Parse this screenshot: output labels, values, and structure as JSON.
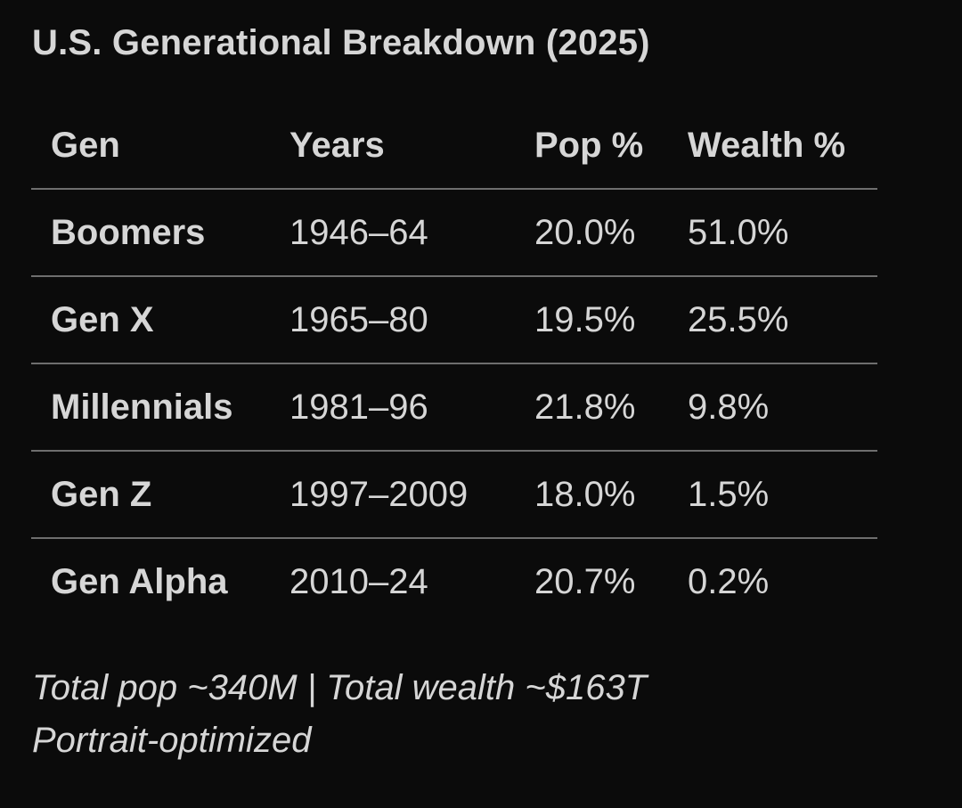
{
  "title": "U.S. Generational Breakdown (2025)",
  "colors": {
    "background": "#0b0b0b",
    "text": "#d6d6d6",
    "divider": "#6e6e6e"
  },
  "chart_data": {
    "type": "table",
    "title": "U.S. Generational Breakdown (2025)",
    "columns": [
      "Gen",
      "Years",
      "Pop %",
      "Wealth %"
    ],
    "rows": [
      [
        "Boomers",
        "1946–64",
        "20.0%",
        "51.0%"
      ],
      [
        "Gen X",
        "1965–80",
        "19.5%",
        "25.5%"
      ],
      [
        "Millennials",
        "1981–96",
        "21.8%",
        "9.8%"
      ],
      [
        "Gen Z",
        "1997–2009",
        "18.0%",
        "1.5%"
      ],
      [
        "Gen Alpha",
        "2010–24",
        "20.7%",
        "0.2%"
      ]
    ],
    "pop_pct": [
      20.0,
      19.5,
      21.8,
      18.0,
      20.7
    ],
    "wealth_pct": [
      51.0,
      25.5,
      9.8,
      1.5,
      0.2
    ],
    "notes": [
      "Total pop ~340M | Total wealth ~$163T",
      "Portrait-optimized"
    ]
  },
  "footer": {
    "line1": "Total pop ~340M | Total wealth ~$163T",
    "line2": "Portrait-optimized"
  }
}
